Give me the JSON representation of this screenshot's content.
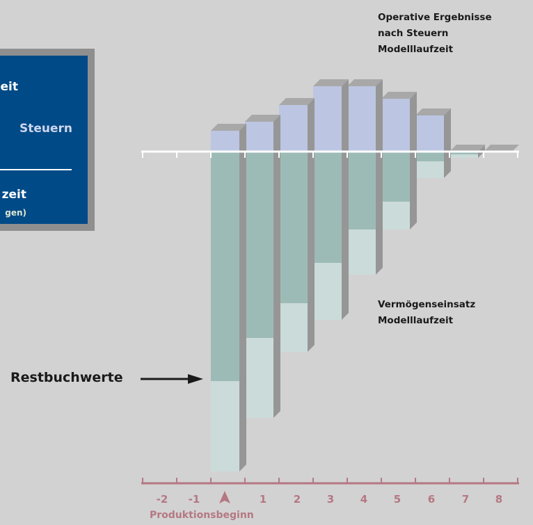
{
  "legend": {
    "line1": "eit",
    "line2": "Steuern",
    "line3": "zeit",
    "line4": "gen)"
  },
  "labels": {
    "operative_line1": "Operative Ergebnisse",
    "operative_line2": "nach Steuern",
    "operative_line3": "Modelllaufzeit",
    "vermoegen_line1": "Vermögenseinsatz",
    "vermoegen_line2": "Modelllaufzeit",
    "restbuchwerte": "Restbuchwerte",
    "produktionsbeginn": "Produktionsbeginn"
  },
  "axis_ticks": [
    "-2",
    "-1",
    "1",
    "2",
    "3",
    "4",
    "5",
    "6",
    "7",
    "8"
  ],
  "colors": {
    "background": "#d2d2d2",
    "legend_box": "#004a87",
    "positive": "#bcc6e2",
    "invested": "#9dbbb6",
    "residual": "#cbdbd9",
    "shadow": "#969696",
    "axis_bottom": "#b57883"
  },
  "bars": [
    {
      "year": "1",
      "operative_result": 30,
      "invested_capital": 330,
      "residual_value": 130
    },
    {
      "year": "2",
      "operative_result": 43,
      "invested_capital": 268,
      "residual_value": 115
    },
    {
      "year": "3",
      "operative_result": 67,
      "invested_capital": 218,
      "residual_value": 70
    },
    {
      "year": "4",
      "operative_result": 94,
      "invested_capital": 160,
      "residual_value": 82
    },
    {
      "year": "5",
      "operative_result": 94,
      "invested_capital": 112,
      "residual_value": 65
    },
    {
      "year": "6",
      "operative_result": 76,
      "invested_capital": 72,
      "residual_value": 40
    },
    {
      "year": "7",
      "operative_result": 52,
      "invested_capital": 14,
      "residual_value": 24
    },
    {
      "year": "8",
      "operative_result": 0,
      "invested_capital": 4,
      "residual_value": 5
    },
    {
      "year": "",
      "operative_result": 0,
      "invested_capital": 0,
      "residual_value": 0
    }
  ]
}
